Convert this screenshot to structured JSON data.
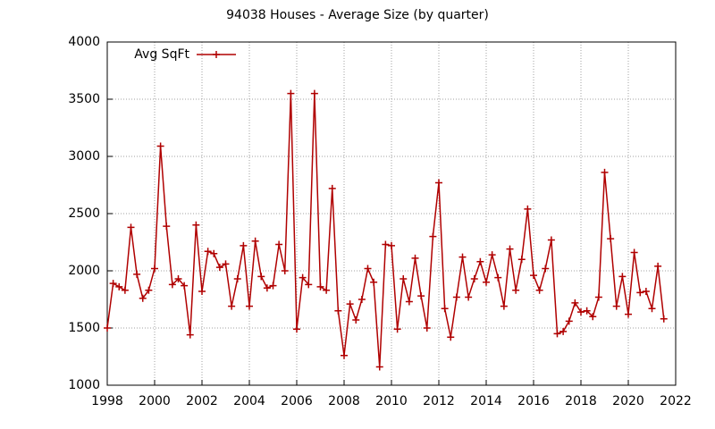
{
  "chart_data": {
    "type": "line",
    "title": "94038 Houses - Average Size (by quarter)",
    "x": [
      1998,
      1998.25,
      1998.5,
      1998.75,
      1999,
      1999.25,
      1999.5,
      1999.75,
      2000,
      2000.25,
      2000.5,
      2000.75,
      2001,
      2001.25,
      2001.5,
      2001.75,
      2002,
      2002.25,
      2002.5,
      2002.75,
      2003,
      2003.25,
      2003.5,
      2003.75,
      2004,
      2004.25,
      2004.5,
      2004.75,
      2005,
      2005.25,
      2005.5,
      2005.75,
      2006,
      2006.25,
      2006.5,
      2006.75,
      2007,
      2007.25,
      2007.5,
      2007.75,
      2008,
      2008.25,
      2008.5,
      2008.75,
      2009,
      2009.25,
      2009.5,
      2009.75,
      2010,
      2010.25,
      2010.5,
      2010.75,
      2011,
      2011.25,
      2011.5,
      2011.75,
      2012,
      2012.25,
      2012.5,
      2012.75,
      2013,
      2013.25,
      2013.5,
      2013.75,
      2014,
      2014.25,
      2014.5,
      2014.75,
      2015,
      2015.25,
      2015.5,
      2015.75,
      2016,
      2016.25,
      2016.5,
      2016.75,
      2017,
      2017.25,
      2017.5,
      2017.75,
      2018,
      2018.25,
      2018.5,
      2018.75,
      2019,
      2019.25,
      2019.5,
      2019.75,
      2020,
      2020.25,
      2020.5,
      2020.75,
      2021,
      2021.25,
      2021.5
    ],
    "series": [
      {
        "name": "Avg SqFt",
        "color": "#b00000",
        "values": [
          1500,
          1890,
          1860,
          1830,
          2380,
          1970,
          1760,
          1830,
          2020,
          3090,
          2390,
          1880,
          1930,
          1870,
          1440,
          2400,
          1820,
          2170,
          2150,
          2030,
          2060,
          1690,
          1930,
          2220,
          1690,
          2260,
          1950,
          1850,
          1870,
          2230,
          2000,
          3550,
          1490,
          1940,
          1880,
          3550,
          1860,
          1830,
          2720,
          1650,
          1260,
          1710,
          1570,
          1750,
          2020,
          1900,
          1160,
          2230,
          2220,
          1490,
          1930,
          1730,
          2110,
          1780,
          1500,
          2300,
          2770,
          1670,
          1420,
          1770,
          2120,
          1770,
          1930,
          2080,
          1900,
          2140,
          1940,
          1690,
          2190,
          1830,
          2100,
          2540,
          1960,
          1830,
          2020,
          2270,
          1450,
          1470,
          1560,
          1720,
          1640,
          1650,
          1600,
          1770,
          2860,
          2280,
          1690,
          1950,
          1620,
          2160,
          1810,
          1820,
          1670,
          2040,
          1580
        ]
      }
    ],
    "xlim": [
      1998,
      2022
    ],
    "xticks": [
      1998,
      2000,
      2002,
      2004,
      2006,
      2008,
      2010,
      2012,
      2014,
      2016,
      2018,
      2020,
      2022
    ],
    "ylim": [
      1000,
      4000
    ],
    "yticks": [
      1000,
      1500,
      2000,
      2500,
      3000,
      3500,
      4000
    ],
    "grid": true,
    "legend": "top-left"
  }
}
